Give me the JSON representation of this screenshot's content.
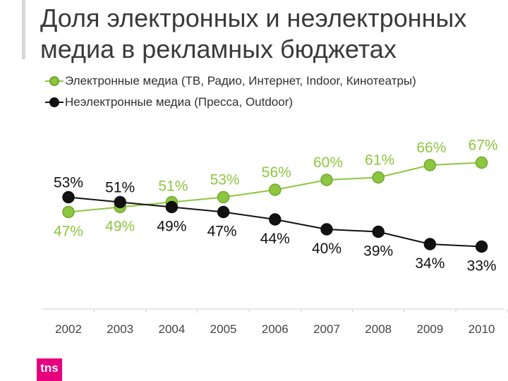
{
  "title": "Доля электронных и неэлектронных медиа в рекламных бюджетах",
  "logo_text": "tns",
  "colors": {
    "electronic": "#8dc63f",
    "non_electronic": "#111111",
    "title": "#3a3a3a",
    "label_green": "#8dc63f",
    "label_dark": "#111111"
  },
  "chart_data": {
    "type": "line",
    "title": "Доля электронных и неэлектронных медиа в рекламных бюджетах",
    "xlabel": "",
    "ylabel": "",
    "ylim": [
      30,
      70
    ],
    "grid": false,
    "legend_position": "top-left",
    "categories": [
      "2002",
      "2003",
      "2004",
      "2005",
      "2006",
      "2007",
      "2008",
      "2009",
      "2010"
    ],
    "series": [
      {
        "name": "Электронные медиа (ТВ, Радио, Интернет, Indoor, Кинотеатры)",
        "values": [
          47,
          49,
          51,
          53,
          56,
          60,
          61,
          66,
          67
        ],
        "labels": [
          "47%",
          "49%",
          "51%",
          "53%",
          "56%",
          "60%",
          "61%",
          "66%",
          "67%"
        ]
      },
      {
        "name": "Неэлектронные медиа (Пресса, Outdoor)",
        "values": [
          53,
          51,
          49,
          47,
          44,
          40,
          39,
          34,
          33
        ],
        "labels": [
          "53%",
          "51%",
          "49%",
          "47%",
          "44%",
          "40%",
          "39%",
          "34%",
          "33%"
        ]
      }
    ]
  }
}
